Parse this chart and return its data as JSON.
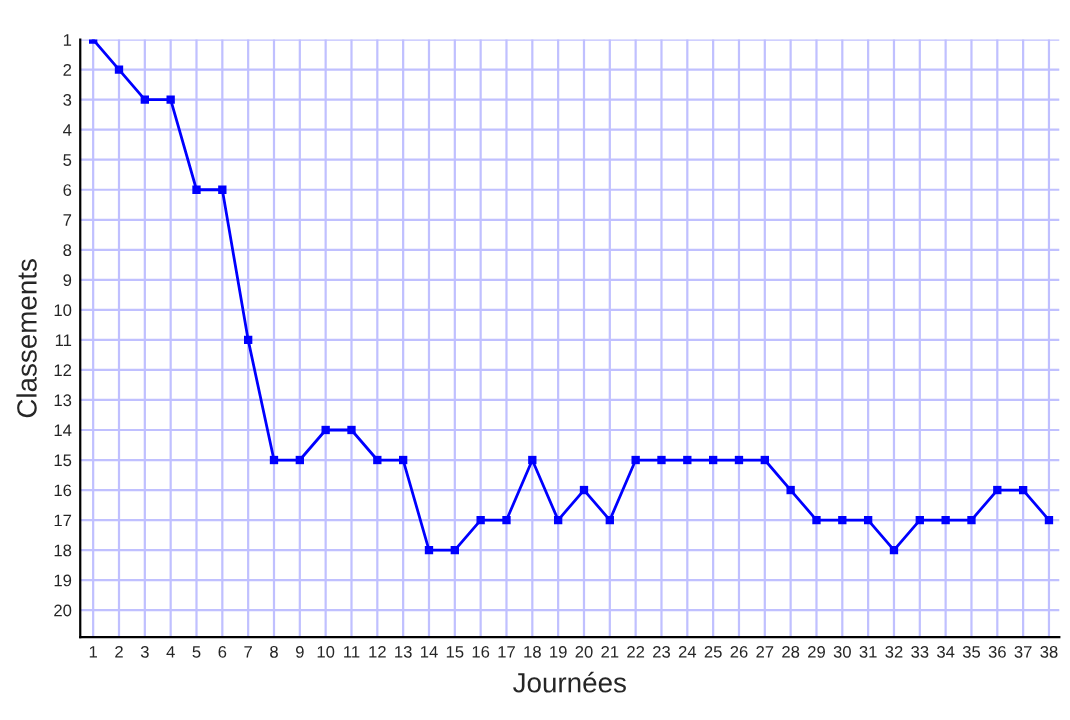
{
  "chart_data": {
    "type": "line",
    "xlabel": "Journées",
    "ylabel": "Classements",
    "x": [
      1,
      2,
      3,
      4,
      5,
      6,
      7,
      8,
      9,
      10,
      11,
      12,
      13,
      14,
      15,
      16,
      17,
      18,
      19,
      20,
      21,
      22,
      23,
      24,
      25,
      26,
      27,
      28,
      29,
      30,
      31,
      32,
      33,
      34,
      35,
      36,
      37,
      38
    ],
    "series": [
      {
        "color": "#0000ff",
        "values": [
          1,
          2,
          3,
          3,
          6,
          6,
          11,
          15,
          15,
          14,
          14,
          15,
          15,
          18,
          18,
          17,
          17,
          15,
          17,
          16,
          17,
          15,
          15,
          15,
          15,
          15,
          15,
          16,
          17,
          17,
          17,
          18,
          17,
          17,
          17,
          16,
          16,
          17
        ]
      }
    ],
    "xlim": [
      0.5,
      38.4
    ],
    "ylim": [
      20.9,
      1
    ],
    "xticks": [
      1,
      2,
      3,
      4,
      5,
      6,
      7,
      8,
      9,
      10,
      11,
      12,
      13,
      14,
      15,
      16,
      17,
      18,
      19,
      20,
      21,
      22,
      23,
      24,
      25,
      26,
      27,
      28,
      29,
      30,
      31,
      32,
      33,
      34,
      35,
      36,
      37,
      38
    ],
    "yticks": [
      1,
      2,
      3,
      4,
      5,
      6,
      7,
      8,
      9,
      10,
      11,
      12,
      13,
      14,
      15,
      16,
      17,
      18,
      19,
      20
    ],
    "grid": true,
    "marker": "square",
    "line_style": "solid",
    "legend": false
  }
}
